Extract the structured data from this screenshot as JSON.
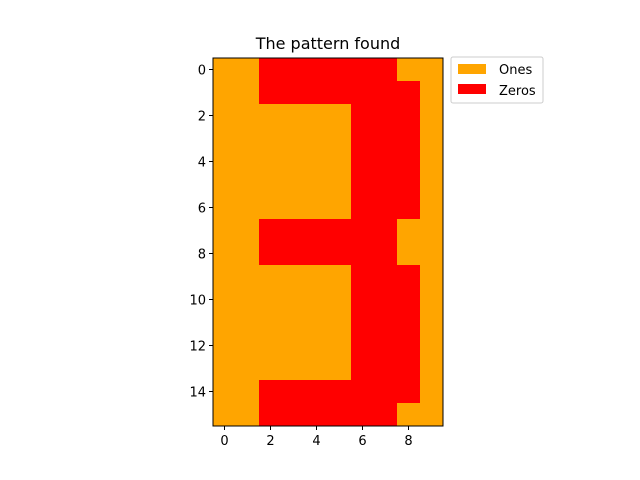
{
  "chart_data": {
    "type": "heatmap",
    "title": "The pattern found",
    "xlabel": "",
    "ylabel": "",
    "xlim": [
      -0.5,
      9.5
    ],
    "ylim": [
      15.5,
      -0.5
    ],
    "x_ticks": [
      0,
      2,
      4,
      6,
      8
    ],
    "y_ticks": [
      0,
      2,
      4,
      6,
      8,
      10,
      12,
      14
    ],
    "grid": false,
    "legend_position": "outside-top-right",
    "legend": [
      {
        "label": "Ones",
        "value": 1,
        "color": "#ffa500"
      },
      {
        "label": "Zeros",
        "value": 0,
        "color": "#ff0000"
      }
    ],
    "matrix": [
      [
        1,
        1,
        0,
        0,
        0,
        0,
        0,
        0,
        1,
        1
      ],
      [
        1,
        1,
        0,
        0,
        0,
        0,
        0,
        0,
        0,
        1
      ],
      [
        1,
        1,
        1,
        1,
        1,
        1,
        0,
        0,
        0,
        1
      ],
      [
        1,
        1,
        1,
        1,
        1,
        1,
        0,
        0,
        0,
        1
      ],
      [
        1,
        1,
        1,
        1,
        1,
        1,
        0,
        0,
        0,
        1
      ],
      [
        1,
        1,
        1,
        1,
        1,
        1,
        0,
        0,
        0,
        1
      ],
      [
        1,
        1,
        1,
        1,
        1,
        1,
        0,
        0,
        0,
        1
      ],
      [
        1,
        1,
        0,
        0,
        0,
        0,
        0,
        0,
        1,
        1
      ],
      [
        1,
        1,
        0,
        0,
        0,
        0,
        0,
        0,
        1,
        1
      ],
      [
        1,
        1,
        1,
        1,
        1,
        1,
        0,
        0,
        0,
        1
      ],
      [
        1,
        1,
        1,
        1,
        1,
        1,
        0,
        0,
        0,
        1
      ],
      [
        1,
        1,
        1,
        1,
        1,
        1,
        0,
        0,
        0,
        1
      ],
      [
        1,
        1,
        1,
        1,
        1,
        1,
        0,
        0,
        0,
        1
      ],
      [
        1,
        1,
        1,
        1,
        1,
        1,
        0,
        0,
        0,
        1
      ],
      [
        1,
        1,
        0,
        0,
        0,
        0,
        0,
        0,
        0,
        1
      ],
      [
        1,
        1,
        0,
        0,
        0,
        0,
        0,
        0,
        1,
        1
      ]
    ]
  }
}
